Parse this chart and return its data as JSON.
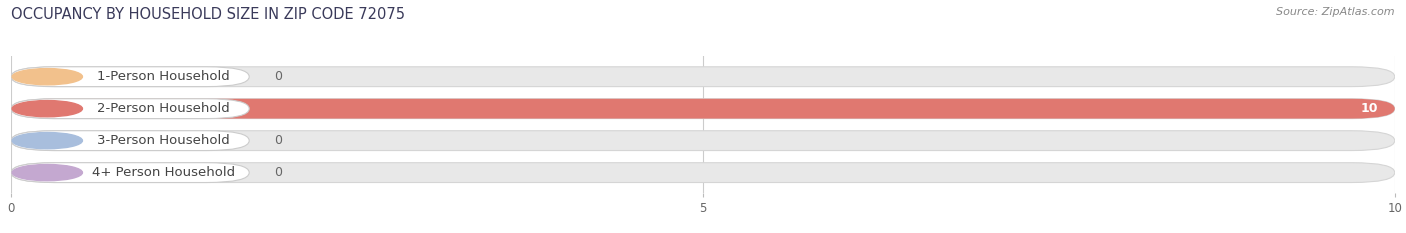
{
  "title": "OCCUPANCY BY HOUSEHOLD SIZE IN ZIP CODE 72075",
  "source": "Source: ZipAtlas.com",
  "categories": [
    "1-Person Household",
    "2-Person Household",
    "3-Person Household",
    "4+ Person Household"
  ],
  "values": [
    0,
    10,
    0,
    0
  ],
  "bar_colors": [
    "#f2c18c",
    "#e07870",
    "#a8bedd",
    "#c4a8d0"
  ],
  "track_color": "#e8e8e8",
  "track_border_color": "#d5d5d5",
  "xlim": [
    0,
    10
  ],
  "xticks": [
    0,
    5,
    10
  ],
  "figsize": [
    14.06,
    2.33
  ],
  "dpi": 100,
  "title_fontsize": 10.5,
  "label_fontsize": 9.5,
  "value_fontsize": 9
}
